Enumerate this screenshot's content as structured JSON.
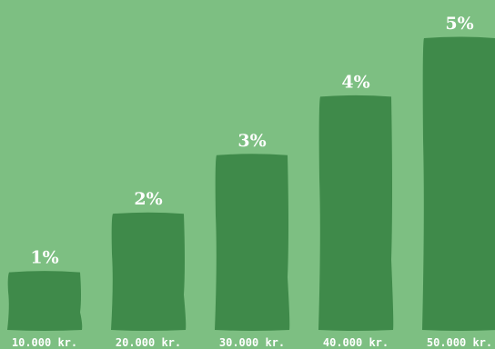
{
  "chart_data": {
    "type": "bar",
    "categories": [
      "10.000 kr.",
      "20.000 kr.",
      "30.000 kr.",
      "40.000 kr.",
      "50.000 kr."
    ],
    "values": [
      1,
      2,
      3,
      4,
      5
    ],
    "data_labels": [
      "1%",
      "2%",
      "3%",
      "4%",
      "5%"
    ],
    "ylim": [
      0,
      5
    ],
    "grid": false,
    "colors": {
      "background": "#7dbf82",
      "bar": "#3f8a4a",
      "text": "#ffffff"
    }
  }
}
